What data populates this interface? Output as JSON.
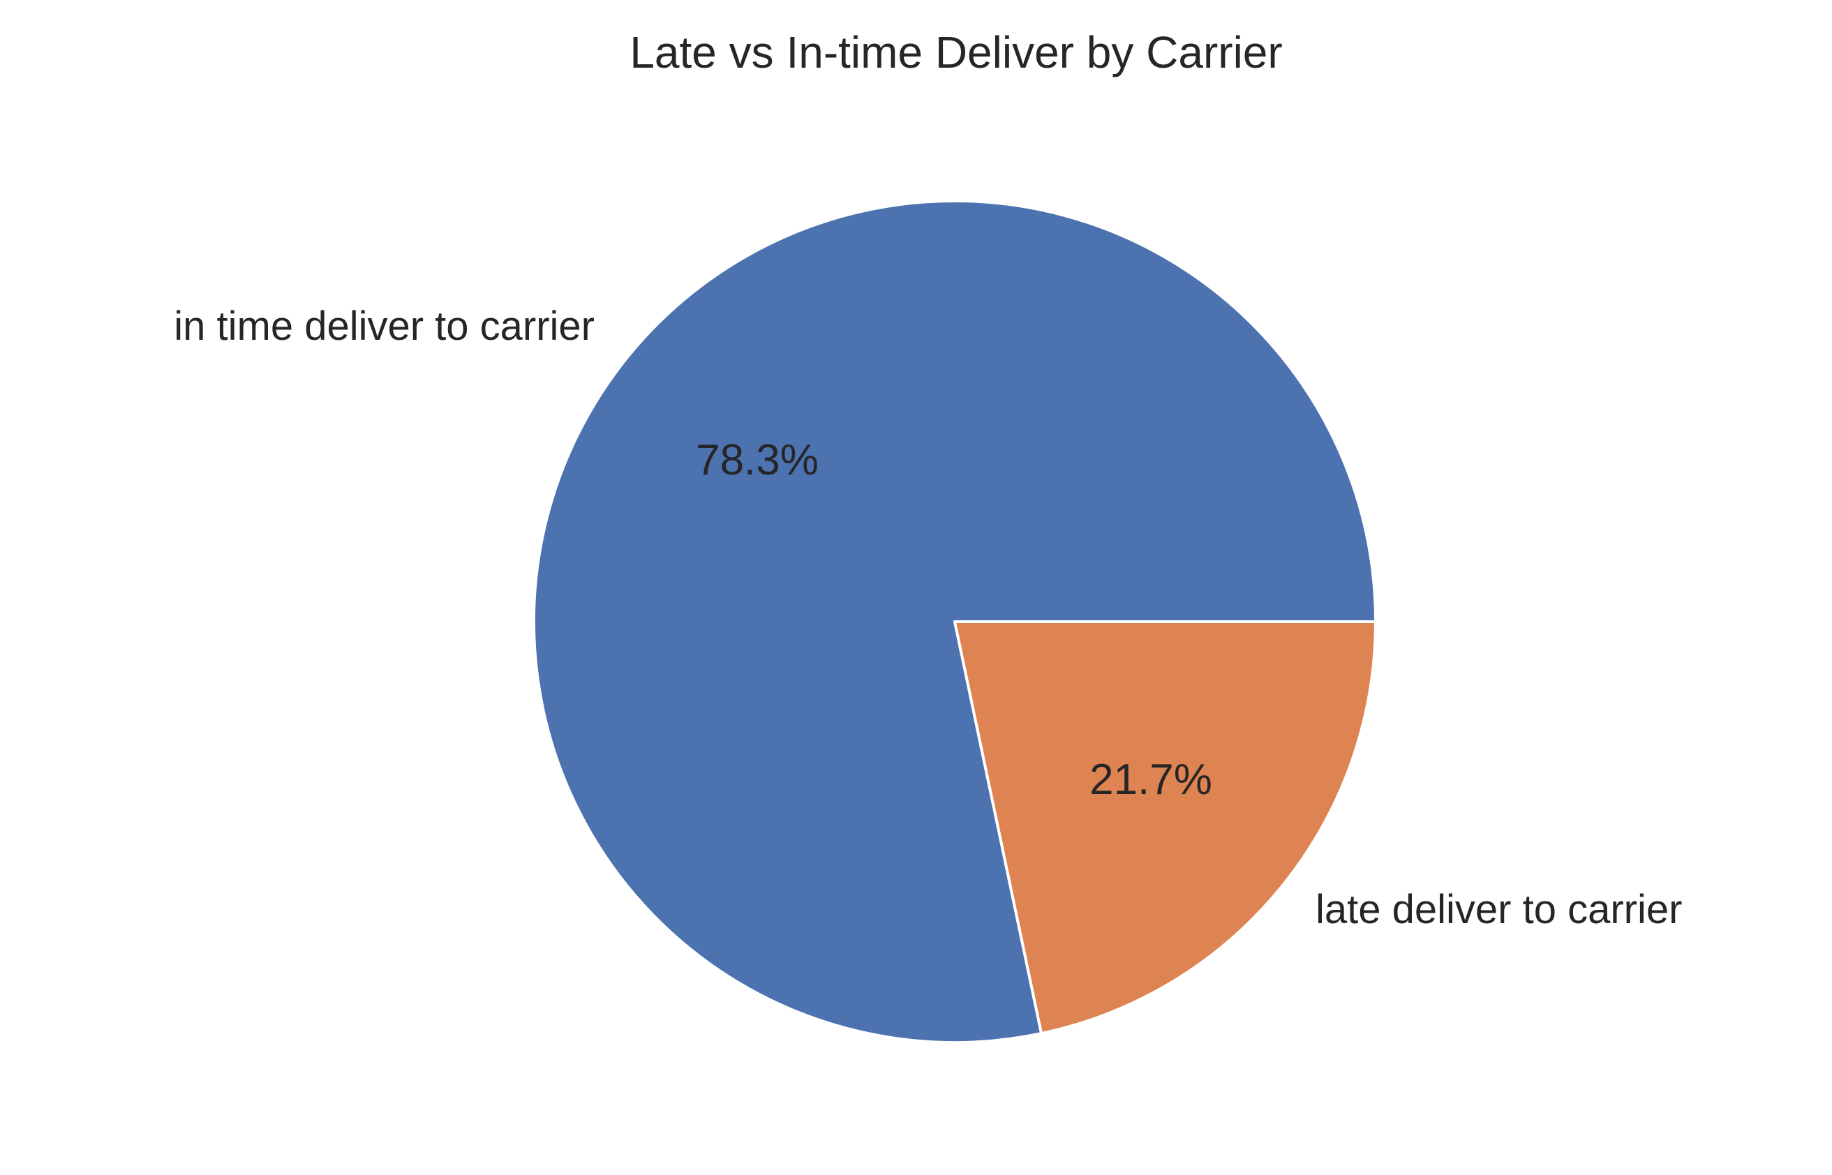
{
  "chart_data": {
    "type": "pie",
    "title": "Late vs In-time Deliver by Carrier",
    "slices": [
      {
        "label": "in time deliver to carrier",
        "value": 78.3,
        "pct_text": "78.3%",
        "color": "#4c72b0"
      },
      {
        "label": "late deliver to carrier",
        "value": 21.7,
        "pct_text": "21.7%",
        "color": "#dd8452"
      }
    ],
    "start_angle_deg": 0,
    "direction": "counterclockwise",
    "edge_color": "#ffffff"
  }
}
